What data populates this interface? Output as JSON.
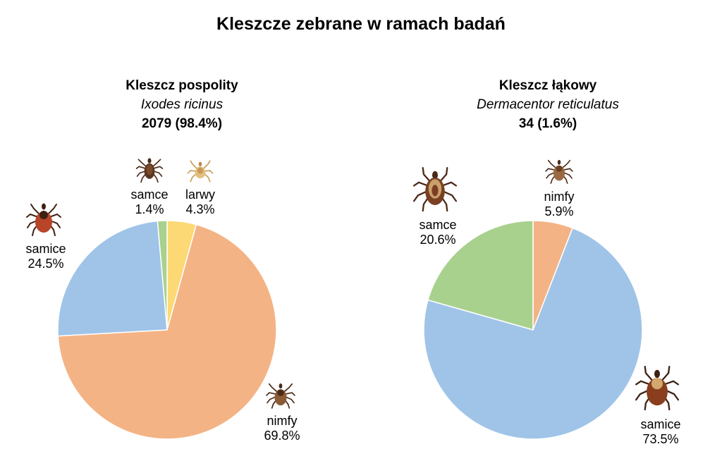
{
  "title": "Kleszcze zebrane w ramach badań",
  "chart_data": [
    {
      "type": "pie",
      "title": "Kleszcz pospolity",
      "subtitle": "Ixodes ricinus",
      "total_label": "2079 (98.4%)",
      "start_angle_deg": 0,
      "direction": "clockwise",
      "slices": [
        {
          "name": "larwy",
          "value": 4.3,
          "color": "#fcd975",
          "icon": "larva-tick-icon"
        },
        {
          "name": "nimfy",
          "value": 69.8,
          "color": "#f4b385",
          "icon": "nymph-tick-icon"
        },
        {
          "name": "samice",
          "value": 24.5,
          "color": "#a0c4e8",
          "icon": "female-tick-icon"
        },
        {
          "name": "samce",
          "value": 1.4,
          "color": "#a9d18e",
          "icon": "male-tick-icon"
        }
      ],
      "labels": {
        "larwy": {
          "name": "larwy",
          "pct": "4.3%"
        },
        "nimfy": {
          "name": "nimfy",
          "pct": "69.8%"
        },
        "samice": {
          "name": "samice",
          "pct": "24.5%"
        },
        "samce": {
          "name": "samce",
          "pct": "1.4%"
        }
      }
    },
    {
      "type": "pie",
      "title": "Kleszcz łąkowy",
      "subtitle": "Dermacentor reticulatus",
      "total_label": "34 (1.6%)",
      "start_angle_deg": 0,
      "direction": "clockwise",
      "slices": [
        {
          "name": "nimfy",
          "value": 5.9,
          "color": "#f4b385",
          "icon": "nymph-tick-icon"
        },
        {
          "name": "samice",
          "value": 73.5,
          "color": "#a0c4e8",
          "icon": "female-tick-icon"
        },
        {
          "name": "samce",
          "value": 20.6,
          "color": "#a9d18e",
          "icon": "male-tick-icon"
        }
      ],
      "labels": {
        "nimfy": {
          "name": "nimfy",
          "pct": "5.9%"
        },
        "samice": {
          "name": "samice",
          "pct": "73.5%"
        },
        "samce": {
          "name": "samce",
          "pct": "20.6%"
        }
      }
    }
  ]
}
